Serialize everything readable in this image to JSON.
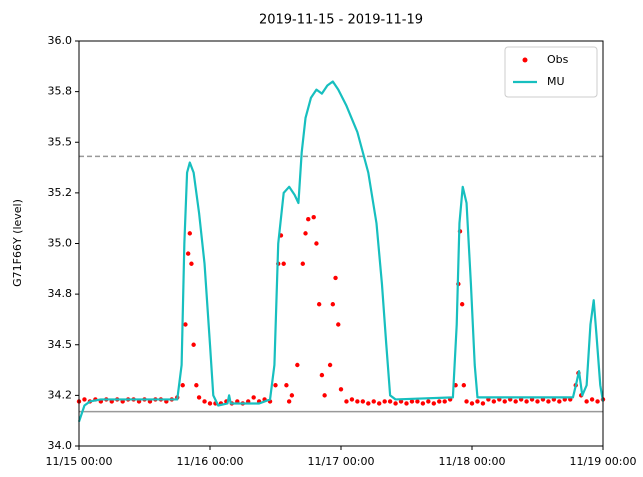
{
  "chart_data": {
    "type": "line",
    "title": "2019-11-15 - 2019-11-19",
    "ylabel": "G71F66Y (level)",
    "xlim": [
      0,
      96
    ],
    "xticks": [
      {
        "value": 0,
        "label": "11/15 00:00"
      },
      {
        "value": 24,
        "label": "11/16 00:00"
      },
      {
        "value": 48,
        "label": "11/17 00:00"
      },
      {
        "value": 72,
        "label": "11/18 00:00"
      },
      {
        "value": 96,
        "label": "11/19 00:00"
      }
    ],
    "ylim": [
      34.0,
      36.0
    ],
    "yticks": [
      {
        "value": 34.0,
        "label": "34.0"
      },
      {
        "value": 34.25,
        "label": "34.2"
      },
      {
        "value": 34.5,
        "label": "34.5"
      },
      {
        "value": 34.75,
        "label": "34.8"
      },
      {
        "value": 35.0,
        "label": "35.0"
      },
      {
        "value": 35.25,
        "label": "35.2"
      },
      {
        "value": 35.5,
        "label": "35.5"
      },
      {
        "value": 35.75,
        "label": "35.8"
      },
      {
        "value": 36.0,
        "label": "36.0"
      }
    ],
    "grid": false,
    "legend": "upper right",
    "hlines": [
      {
        "value": 35.43,
        "style": "dashed",
        "color": "#999999"
      },
      {
        "value": 34.17,
        "style": "solid",
        "color": "#999999"
      }
    ],
    "series": [
      {
        "name": "Obs",
        "color": "#ff0000",
        "style": "dots",
        "x": [
          0,
          1,
          2,
          3,
          4,
          5,
          6,
          7,
          8,
          9,
          10,
          11,
          12,
          13,
          14,
          15,
          16,
          17,
          18,
          19,
          19.5,
          20,
          20.3,
          20.6,
          21,
          21.5,
          22,
          23,
          24,
          25,
          26,
          27,
          28,
          29,
          30,
          31,
          32,
          33,
          34,
          35,
          36,
          36.5,
          37,
          37.5,
          38,
          38.5,
          39,
          40,
          41,
          41.5,
          42,
          43,
          43.5,
          44,
          44.5,
          45,
          46,
          46.5,
          47,
          47.5,
          48,
          49,
          50,
          51,
          52,
          53,
          54,
          55,
          56,
          57,
          58,
          59,
          60,
          61,
          62,
          63,
          64,
          65,
          66,
          67,
          68,
          69,
          69.5,
          69.8,
          70.2,
          70.5,
          71,
          72,
          73,
          74,
          75,
          76,
          77,
          78,
          79,
          80,
          81,
          82,
          83,
          84,
          85,
          86,
          87,
          88,
          89,
          90,
          91,
          91.5,
          92,
          93,
          94,
          95,
          96
        ],
        "values": [
          34.22,
          34.23,
          34.22,
          34.23,
          34.22,
          34.23,
          34.22,
          34.23,
          34.22,
          34.23,
          34.23,
          34.22,
          34.23,
          34.22,
          34.23,
          34.23,
          34.22,
          34.23,
          34.24,
          34.3,
          34.6,
          34.95,
          35.05,
          34.9,
          34.5,
          34.3,
          34.24,
          34.22,
          34.21,
          34.21,
          34.21,
          34.22,
          34.21,
          34.22,
          34.21,
          34.22,
          34.24,
          34.22,
          34.23,
          34.22,
          34.3,
          34.9,
          35.04,
          34.9,
          34.3,
          34.22,
          34.25,
          34.4,
          34.9,
          35.05,
          35.12,
          35.13,
          35.0,
          34.7,
          34.35,
          34.25,
          34.4,
          34.7,
          34.83,
          34.6,
          34.28,
          34.22,
          34.23,
          34.22,
          34.22,
          34.21,
          34.22,
          34.21,
          34.22,
          34.22,
          34.21,
          34.22,
          34.21,
          34.22,
          34.22,
          34.21,
          34.22,
          34.21,
          34.22,
          34.22,
          34.23,
          34.3,
          34.8,
          35.06,
          34.7,
          34.3,
          34.22,
          34.21,
          34.22,
          34.21,
          34.23,
          34.22,
          34.23,
          34.22,
          34.23,
          34.22,
          34.23,
          34.22,
          34.23,
          34.22,
          34.23,
          34.22,
          34.23,
          34.22,
          34.23,
          34.23,
          34.3,
          34.36,
          34.25,
          34.22,
          34.23,
          34.22,
          34.23
        ]
      },
      {
        "name": "MU",
        "color": "#17bfbf",
        "style": "line",
        "x": [
          0,
          1,
          2,
          4,
          18,
          18.8,
          19.3,
          19.8,
          20.3,
          21,
          22,
          23,
          24,
          24.6,
          25.5,
          27.2,
          27.5,
          27.8,
          33,
          35,
          35.8,
          36.5,
          37.5,
          38.5,
          39.5,
          40.2,
          40.8,
          41.5,
          42.5,
          43.5,
          44.5,
          45.5,
          46.5,
          47.5,
          49,
          51,
          53,
          54.5,
          55.5,
          56.3,
          57,
          58,
          68.5,
          69.2,
          69.7,
          70.3,
          71,
          71.8,
          72.5,
          73,
          90.5,
          91.2,
          91.6,
          92.2,
          93,
          93.7,
          94.3,
          94.8,
          95.5,
          96
        ],
        "values": [
          34.12,
          34.2,
          34.22,
          34.23,
          34.23,
          34.4,
          35.0,
          35.35,
          35.4,
          35.35,
          35.15,
          34.9,
          34.5,
          34.25,
          34.2,
          34.21,
          34.25,
          34.21,
          34.21,
          34.23,
          34.4,
          35.0,
          35.25,
          35.28,
          35.24,
          35.2,
          35.45,
          35.62,
          35.72,
          35.76,
          35.74,
          35.78,
          35.8,
          35.76,
          35.68,
          35.55,
          35.35,
          35.1,
          34.8,
          34.5,
          34.25,
          34.23,
          34.24,
          34.6,
          35.1,
          35.28,
          35.2,
          34.8,
          34.4,
          34.24,
          34.24,
          34.32,
          34.37,
          34.25,
          34.3,
          34.6,
          34.72,
          34.55,
          34.3,
          34.22
        ]
      }
    ]
  }
}
